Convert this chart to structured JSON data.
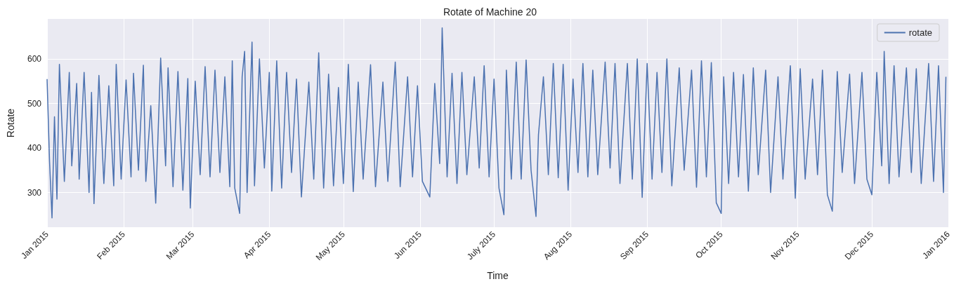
{
  "chart_data": {
    "type": "line",
    "title": "Rotate of Machine 20",
    "xlabel": "Time",
    "ylabel": "Rotate",
    "x": [
      "2015-01-01",
      "2015-01-02",
      "2015-01-03",
      "2015-01-04",
      "2015-01-05",
      "2015-01-06",
      "2015-01-08",
      "2015-01-10",
      "2015-01-11",
      "2015-01-13",
      "2015-01-14",
      "2015-01-16",
      "2015-01-18",
      "2015-01-19",
      "2015-01-20",
      "2015-01-22",
      "2015-01-24",
      "2015-01-26",
      "2015-01-28",
      "2015-01-29",
      "2015-01-31",
      "2015-02-02",
      "2015-02-04",
      "2015-02-05",
      "2015-02-07",
      "2015-02-09",
      "2015-02-10",
      "2015-02-12",
      "2015-02-14",
      "2015-02-16",
      "2015-02-18",
      "2015-02-19",
      "2015-02-21",
      "2015-02-23",
      "2015-02-25",
      "2015-02-27",
      "2015-02-28",
      "2015-03-02",
      "2015-03-04",
      "2015-03-06",
      "2015-03-08",
      "2015-03-10",
      "2015-03-12",
      "2015-03-14",
      "2015-03-16",
      "2015-03-17",
      "2015-03-18",
      "2015-03-20",
      "2015-03-21",
      "2015-03-22",
      "2015-03-23",
      "2015-03-25",
      "2015-03-26",
      "2015-03-28",
      "2015-03-30",
      "2015-04-01",
      "2015-04-02",
      "2015-04-04",
      "2015-04-06",
      "2015-04-08",
      "2015-04-10",
      "2015-04-12",
      "2015-04-14",
      "2015-04-17",
      "2015-04-19",
      "2015-04-21",
      "2015-04-23",
      "2015-04-25",
      "2015-04-27",
      "2015-04-29",
      "2015-05-01",
      "2015-05-03",
      "2015-05-05",
      "2015-05-07",
      "2015-05-09",
      "2015-05-12",
      "2015-05-14",
      "2015-05-17",
      "2015-05-19",
      "2015-05-22",
      "2015-05-24",
      "2015-05-27",
      "2015-05-29",
      "2015-05-31",
      "2015-06-02",
      "2015-06-05",
      "2015-06-07",
      "2015-06-09",
      "2015-06-10",
      "2015-06-12",
      "2015-06-14",
      "2015-06-16",
      "2015-06-18",
      "2015-06-20",
      "2015-06-23",
      "2015-06-25",
      "2015-06-27",
      "2015-06-29",
      "2015-07-01",
      "2015-07-03",
      "2015-07-05",
      "2015-07-06",
      "2015-07-08",
      "2015-07-10",
      "2015-07-12",
      "2015-07-14",
      "2015-07-16",
      "2015-07-18",
      "2015-07-19",
      "2015-07-21",
      "2015-07-23",
      "2015-07-25",
      "2015-07-27",
      "2015-07-29",
      "2015-07-31",
      "2015-08-02",
      "2015-08-04",
      "2015-08-06",
      "2015-08-08",
      "2015-08-10",
      "2015-08-12",
      "2015-08-15",
      "2015-08-17",
      "2015-08-19",
      "2015-08-21",
      "2015-08-24",
      "2015-08-26",
      "2015-08-28",
      "2015-08-30",
      "2015-09-01",
      "2015-09-03",
      "2015-09-05",
      "2015-09-07",
      "2015-09-09",
      "2015-09-11",
      "2015-09-14",
      "2015-09-16",
      "2015-09-19",
      "2015-09-21",
      "2015-09-23",
      "2015-09-25",
      "2015-09-27",
      "2015-09-29",
      "2015-10-01",
      "2015-10-02",
      "2015-10-04",
      "2015-10-06",
      "2015-10-08",
      "2015-10-10",
      "2015-10-12",
      "2015-10-14",
      "2015-10-16",
      "2015-10-19",
      "2015-10-21",
      "2015-10-24",
      "2015-10-26",
      "2015-10-29",
      "2015-10-31",
      "2015-11-02",
      "2015-11-04",
      "2015-11-07",
      "2015-11-09",
      "2015-11-11",
      "2015-11-13",
      "2015-11-15",
      "2015-11-17",
      "2015-11-19",
      "2015-11-22",
      "2015-11-24",
      "2015-11-27",
      "2015-11-29",
      "2015-12-01",
      "2015-12-03",
      "2015-12-05",
      "2015-12-06",
      "2015-12-08",
      "2015-12-10",
      "2015-12-12",
      "2015-12-15",
      "2015-12-17",
      "2015-12-19",
      "2015-12-21",
      "2015-12-24",
      "2015-12-26",
      "2015-12-28",
      "2015-12-30",
      "2015-12-31"
    ],
    "series": [
      {
        "name": "rotate",
        "color": "#4c72b0",
        "values": [
          555,
          370,
          243,
          470,
          285,
          588,
          325,
          570,
          360,
          545,
          330,
          570,
          300,
          525,
          275,
          563,
          320,
          540,
          315,
          588,
          330,
          553,
          335,
          568,
          350,
          586,
          325,
          495,
          276,
          602,
          360,
          580,
          313,
          572,
          305,
          556,
          265,
          550,
          340,
          583,
          335,
          575,
          345,
          560,
          313,
          596,
          310,
          253,
          560,
          617,
          300,
          638,
          315,
          600,
          355,
          570,
          303,
          596,
          310,
          570,
          345,
          555,
          290,
          548,
          330,
          614,
          310,
          566,
          315,
          536,
          320,
          588,
          302,
          548,
          330,
          587,
          313,
          548,
          325,
          593,
          313,
          560,
          335,
          540,
          325,
          290,
          545,
          365,
          670,
          335,
          568,
          320,
          570,
          340,
          560,
          355,
          585,
          335,
          555,
          310,
          250,
          575,
          330,
          593,
          330,
          598,
          350,
          246,
          430,
          560,
          340,
          590,
          333,
          588,
          305,
          555,
          345,
          590,
          335,
          575,
          340,
          593,
          355,
          590,
          320,
          590,
          330,
          600,
          289,
          590,
          330,
          570,
          345,
          600,
          315,
          580,
          350,
          575,
          312,
          596,
          335,
          592,
          277,
          253,
          560,
          320,
          570,
          335,
          565,
          303,
          580,
          340,
          575,
          300,
          560,
          330,
          585,
          287,
          578,
          330,
          555,
          340,
          575,
          295,
          258,
          572,
          345,
          566,
          320,
          570,
          330,
          295,
          570,
          360,
          617,
          320,
          585,
          335,
          580,
          345,
          578,
          320,
          590,
          325,
          585,
          300,
          560
        ]
      }
    ],
    "xlim": [
      "2015-01-01",
      "2016-01-01"
    ],
    "xticks": [
      {
        "value": "2015-01-01",
        "label": "Jan 2015"
      },
      {
        "value": "2015-02-01",
        "label": "Feb 2015"
      },
      {
        "value": "2015-03-01",
        "label": "Mar 2015"
      },
      {
        "value": "2015-04-01",
        "label": "Apr 2015"
      },
      {
        "value": "2015-05-01",
        "label": "May 2015"
      },
      {
        "value": "2015-06-01",
        "label": "Jun 2015"
      },
      {
        "value": "2015-07-01",
        "label": "July 2015"
      },
      {
        "value": "2015-08-01",
        "label": "Aug 2015"
      },
      {
        "value": "2015-09-01",
        "label": "Sep 2015"
      },
      {
        "value": "2015-10-01",
        "label": "Oct 2015"
      },
      {
        "value": "2015-11-01",
        "label": "Nov 2015"
      },
      {
        "value": "2015-12-01",
        "label": "Dec 2015"
      },
      {
        "value": "2016-01-01",
        "label": "Jan 2016"
      }
    ],
    "ylim": [
      222,
      690
    ],
    "yticks": [
      300,
      400,
      500,
      600
    ],
    "grid": true,
    "legend": "top right",
    "marker": "none",
    "line_style": "solid"
  }
}
